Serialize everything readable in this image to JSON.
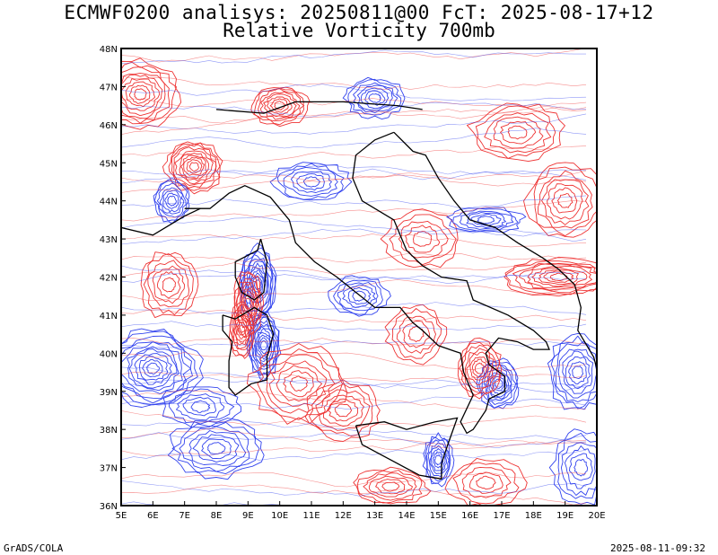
{
  "header": {
    "title_line1": "ECMWF0200 analisys: 20250811@00 FcT: 2025-08-17+12",
    "title_line2": "Relative Vorticity 700mb"
  },
  "map": {
    "lon_labels": [
      "5E",
      "6E",
      "7E",
      "8E",
      "9E",
      "10E",
      "11E",
      "12E",
      "13E",
      "14E",
      "15E",
      "16E",
      "17E",
      "18E",
      "19E",
      "20E"
    ],
    "lat_labels": [
      "48N",
      "47N",
      "46N",
      "45N",
      "44N",
      "43N",
      "42N",
      "41N",
      "40N",
      "39N",
      "38N",
      "37N",
      "36N"
    ],
    "lon_range": [
      5,
      20
    ],
    "lat_range": [
      36,
      48
    ],
    "positive_color": "#ee3333",
    "negative_color": "#3344ee",
    "coast_color": "#000000"
  },
  "footer": {
    "left": "GrADS/COLA",
    "right": "2025-08-11-09:32"
  }
}
